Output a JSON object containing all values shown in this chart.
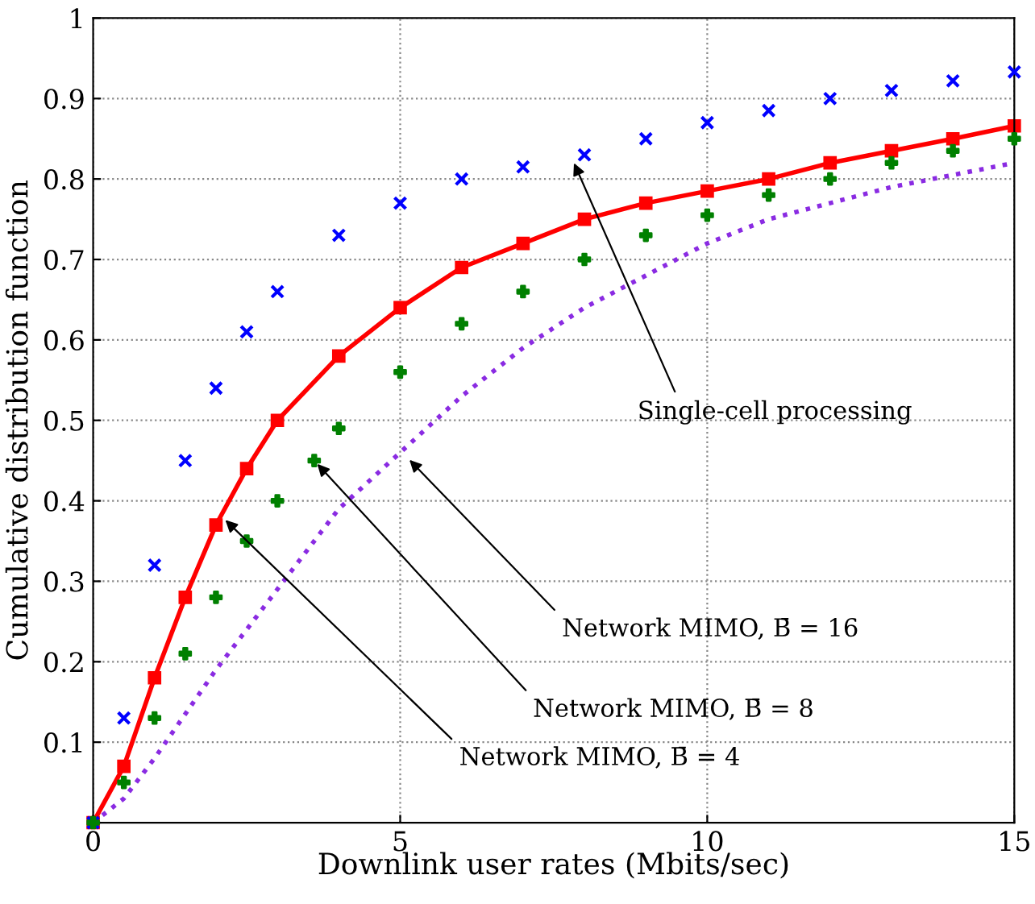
{
  "chart_data": {
    "type": "line",
    "xlabel": "Downlink user rates (Mbits/sec)",
    "ylabel": "Cumulative distribution function",
    "xlim": [
      0,
      15
    ],
    "xticks": [
      0,
      5,
      10,
      15
    ],
    "ylim": [
      0,
      1
    ],
    "yticks": [
      {
        "value": 0,
        "label": null
      },
      0.1,
      0.2,
      0.3,
      0.4,
      0.5,
      0.6,
      0.7,
      0.8,
      0.9,
      1
    ],
    "grid": true,
    "legend": false,
    "series": [
      {
        "type": "scatter",
        "color": "#0000ff",
        "marker": "cross",
        "x": [
          0,
          0.5,
          1,
          1.5,
          2,
          2.5,
          3,
          4,
          5,
          6,
          7,
          8,
          9,
          10,
          11,
          12,
          13,
          14,
          15
        ],
        "values": [
          0,
          0.13,
          0.32,
          0.45,
          0.54,
          0.61,
          0.66,
          0.73,
          0.77,
          0.8,
          0.815,
          0.83,
          0.85,
          0.87,
          0.885,
          0.9,
          0.91,
          0.922,
          0.933
        ]
      },
      {
        "color": "#ff0000",
        "marker": "square",
        "line_style": "solid",
        "x": [
          0,
          0.5,
          1,
          1.5,
          2,
          2.5,
          3,
          4,
          5,
          6,
          7,
          8,
          9,
          10,
          11,
          12,
          13,
          14,
          15
        ],
        "values": [
          0,
          0.07,
          0.18,
          0.28,
          0.37,
          0.44,
          0.5,
          0.58,
          0.64,
          0.69,
          0.72,
          0.75,
          0.77,
          0.785,
          0.8,
          0.82,
          0.835,
          0.85,
          0.866
        ]
      },
      {
        "type": "scatter",
        "color": "#008000",
        "marker": "cross",
        "x": [
          0,
          0.5,
          1,
          1.5,
          2,
          2.5,
          3,
          3.6,
          4,
          5,
          6,
          7,
          8,
          9,
          10,
          11,
          12,
          13,
          14,
          15
        ],
        "values": [
          0,
          0.05,
          0.13,
          0.21,
          0.28,
          0.35,
          0.4,
          0.45,
          0.49,
          0.56,
          0.62,
          0.66,
          0.7,
          0.73,
          0.755,
          0.78,
          0.8,
          0.82,
          0.835,
          0.85
        ]
      },
      {
        "color": "#8a2be2",
        "marker": "none",
        "line_style": "dotted",
        "x": [
          0,
          0.5,
          1,
          2,
          3,
          4,
          5,
          6,
          7,
          8,
          9,
          10,
          11,
          12,
          13,
          14,
          15
        ],
        "values": [
          0,
          0.03,
          0.08,
          0.19,
          0.29,
          0.39,
          0.46,
          0.53,
          0.59,
          0.64,
          0.68,
          0.72,
          0.75,
          0.77,
          0.79,
          0.805,
          0.82
        ]
      }
    ],
    "annotations": [
      {
        "text": "Single-cell processing",
        "x": 7.8,
        "y": 0.825
      },
      {
        "text": "Network MIMO, B̄ = 16",
        "x": 5.1,
        "y": 0.455
      },
      {
        "text": "Network MIMO, B̄ = 8",
        "x": 3.6,
        "y": 0.45
      },
      {
        "text": "Network MIMO, B̄ = 4",
        "x": 2.1,
        "y": 0.38
      }
    ]
  }
}
